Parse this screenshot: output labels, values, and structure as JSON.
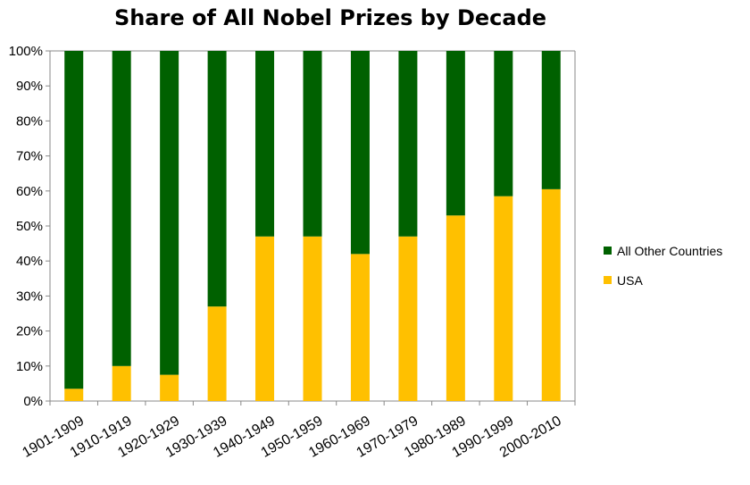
{
  "chart_data": {
    "type": "bar",
    "stacked": true,
    "percent_stacked": true,
    "title": "Share of All Nobel Prizes by Decade",
    "xlabel": "",
    "ylabel": "",
    "categories": [
      "1901-1909",
      "1910-1919",
      "1920-1929",
      "1930-1939",
      "1940-1949",
      "1950-1959",
      "1960-1969",
      "1970-1979",
      "1980-1989",
      "1990-1999",
      "2000-2010"
    ],
    "series": [
      {
        "name": "USA",
        "color": "#FFC000",
        "values": [
          3.5,
          10,
          7.5,
          27,
          47,
          47,
          42,
          47,
          53,
          58.5,
          60.5
        ]
      },
      {
        "name": "All Other Countries",
        "color": "#006100",
        "values": [
          96.5,
          90,
          92.5,
          73,
          53,
          53,
          58,
          53,
          47,
          41.5,
          39.5
        ]
      }
    ],
    "ylim": [
      0,
      100
    ],
    "yticks": [
      "0%",
      "10%",
      "20%",
      "30%",
      "40%",
      "50%",
      "60%",
      "70%",
      "80%",
      "90%",
      "100%"
    ],
    "legend": {
      "position": "right",
      "entries": [
        "All Other Countries",
        "USA"
      ]
    },
    "grid": false
  }
}
